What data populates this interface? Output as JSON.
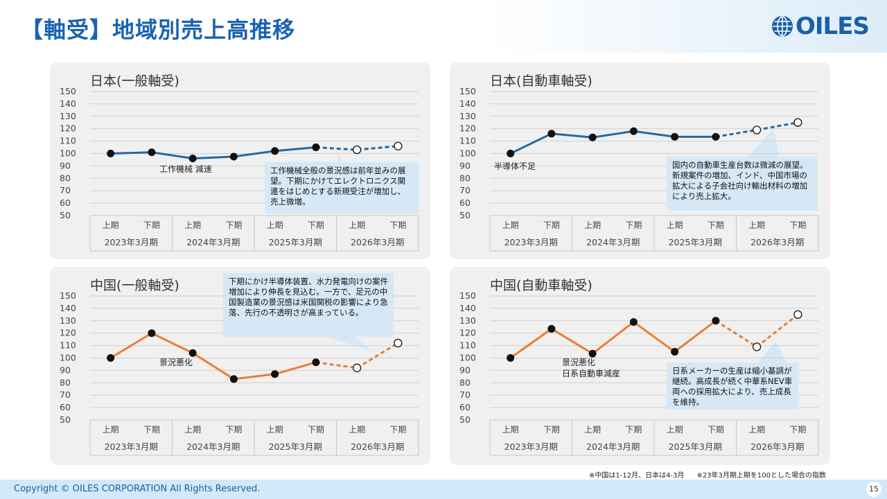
{
  "header": {
    "title": "【軸受】地域別売上高推移",
    "logo_text": "OILES"
  },
  "colors": {
    "japan_line": "#1f6aa5",
    "china_line": "#ec7d31",
    "callout_bg": "#d6e8f6",
    "panel_bg": "#f0f0f0"
  },
  "chart_data": [
    {
      "type": "line",
      "title": "日本(一般軸受)",
      "x": [
        "上期",
        "下期",
        "上期",
        "下期",
        "上期",
        "下期",
        "上期",
        "下期"
      ],
      "groups": [
        "2023年3月期",
        "2024年3月期",
        "2025年3月期",
        "2026年3月期"
      ],
      "values": [
        100,
        101,
        96,
        97.5,
        102,
        105,
        103,
        106
      ],
      "actual_count": 6,
      "ylim": [
        50,
        150
      ],
      "yticks": [
        150,
        140,
        130,
        120,
        110,
        100,
        90,
        80,
        70,
        60,
        50
      ],
      "line_color": "#1f6aa5",
      "annotation": "工作機械 減速",
      "callout": "工作機械全般の景況感は前年並みの展望。下期にかけてエレクトロニクス関連をはじめとする新規受注が増加し、売上微増。"
    },
    {
      "type": "line",
      "title": "日本(自動車軸受)",
      "x": [
        "上期",
        "下期",
        "上期",
        "下期",
        "上期",
        "下期",
        "上期",
        "下期"
      ],
      "groups": [
        "2023年3月期",
        "2024年3月期",
        "2025年3月期",
        "2026年3月期"
      ],
      "values": [
        100,
        116,
        113,
        118,
        113.5,
        113.5,
        119,
        125
      ],
      "actual_count": 6,
      "ylim": [
        50,
        150
      ],
      "yticks": [
        150,
        140,
        130,
        120,
        110,
        100,
        90,
        80,
        70,
        60,
        50
      ],
      "line_color": "#1f6aa5",
      "annotation": "半導体不足",
      "callout": "国内の自動車生産台数は微減の展望。新規案件の増加、インド、中国市場の拡大による子会社向け輸出材料の増加により売上拡大。"
    },
    {
      "type": "line",
      "title": "中国(一般軸受)",
      "x": [
        "上期",
        "下期",
        "上期",
        "下期",
        "上期",
        "下期",
        "上期",
        "下期"
      ],
      "groups": [
        "2023年3月期",
        "2024年3月期",
        "2025年3月期",
        "2026年3月期"
      ],
      "values": [
        100,
        120,
        104,
        83,
        87,
        96.5,
        92,
        112
      ],
      "actual_count": 6,
      "ylim": [
        50,
        150
      ],
      "yticks": [
        150,
        140,
        130,
        120,
        110,
        100,
        90,
        80,
        70,
        60,
        50
      ],
      "line_color": "#ec7d31",
      "annotation": "景況悪化",
      "callout": "下期にかけ半導体装置、水力発電向けの案件増加により伸長を見込む。一方で、足元の中国製造業の景況感は米国関税の影響により急落、先行の不透明さが高まっている。"
    },
    {
      "type": "line",
      "title": "中国(自動車軸受)",
      "x": [
        "上期",
        "下期",
        "上期",
        "下期",
        "上期",
        "下期",
        "上期",
        "下期"
      ],
      "groups": [
        "2023年3月期",
        "2024年3月期",
        "2025年3月期",
        "2026年3月期"
      ],
      "values": [
        100,
        123.5,
        103.5,
        129,
        105,
        130,
        109,
        135
      ],
      "actual_count": 6,
      "ylim": [
        50,
        150
      ],
      "yticks": [
        150,
        140,
        130,
        120,
        110,
        100,
        90,
        80,
        70,
        60,
        50
      ],
      "line_color": "#ec7d31",
      "annotation": "景況悪化\n日系自動車減産",
      "callout": "日系メーカーの生産は縮小基調が継続。高成長が続く中華系NEV車両への採用拡大により、売上成長を維持。"
    }
  ],
  "footnote": {
    "note1": "※中国は1-12月、日本は4-3月",
    "note2": "※23年3月期上期を100とした場合の指数"
  },
  "footer": {
    "copyright": "Copyright © OILES CORPORATION All Rights Reserved.",
    "page": "15"
  }
}
